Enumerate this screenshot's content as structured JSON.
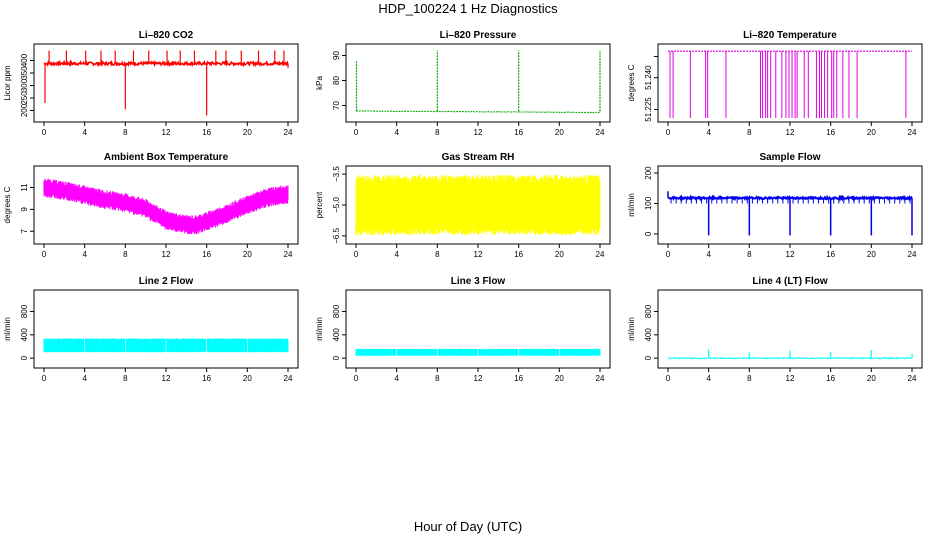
{
  "page": {
    "title": "HDP_100224  1 Hz Diagnostics",
    "xlabel": "Hour of Day (UTC)"
  },
  "chart_data": [
    {
      "type": "line",
      "title": "Li–820 CO2",
      "ylabel": "Licor ppm",
      "color": "#ff0000",
      "xlim": [
        0,
        24
      ],
      "xticks": [
        0,
        4,
        8,
        12,
        16,
        20,
        24
      ],
      "ylim": [
        170,
        450
      ],
      "yticks": [
        200,
        250,
        300,
        350,
        400
      ],
      "baseline": 388,
      "noise": 12,
      "spikes_up": [
        0.5,
        2.2,
        4.1,
        5.6,
        7.0,
        8.8,
        10.3,
        12.1,
        13.4,
        14.8,
        16.9,
        17.9,
        19.4,
        21.1,
        22.7,
        23.6
      ],
      "spike_up_value": 440,
      "spikes_down": [
        {
          "x": 0.1,
          "y": 230
        },
        {
          "x": 8.0,
          "y": 205
        },
        {
          "x": 16.0,
          "y": 180
        },
        {
          "x": 24.0,
          "y": 370
        }
      ]
    },
    {
      "type": "line",
      "title": "Li–820 Pressure",
      "ylabel": "kPa",
      "color": "#00aa00",
      "xlim": [
        0,
        24
      ],
      "xticks": [
        0,
        4,
        8,
        12,
        16,
        20,
        24
      ],
      "ylim": [
        65,
        93
      ],
      "yticks": [
        70,
        80,
        90
      ],
      "baseline_start": 67.8,
      "baseline_end": 67.2,
      "spikes_up": [
        {
          "x": 0.05,
          "y": 88
        },
        {
          "x": 8.0,
          "y": 92
        },
        {
          "x": 16.0,
          "y": 92
        },
        {
          "x": 24.0,
          "y": 92
        }
      ]
    },
    {
      "type": "line",
      "title": "Li–820 Temperature",
      "ylabel": "degrees C",
      "color": "#e000e0",
      "xlim": [
        0,
        24
      ],
      "xticks": [
        0,
        4,
        8,
        12,
        16,
        20,
        24
      ],
      "ylim": [
        51.221,
        51.254
      ],
      "yticks": [
        51.225,
        51.24,
        51.25
      ],
      "ytick_labels": [
        "51.225",
        "51.240",
        ""
      ],
      "baseline": 51.2525,
      "drops_x": [
        0.2,
        0.5,
        2.2,
        3.7,
        3.9,
        5.7,
        9.1,
        9.3,
        9.6,
        9.8,
        10.1,
        10.6,
        11.2,
        11.6,
        11.9,
        12.2,
        12.5,
        12.7,
        13.4,
        13.8,
        14.6,
        14.9,
        15.1,
        15.4,
        15.7,
        16.1,
        16.3,
        16.6,
        17.2,
        17.8,
        18.6,
        23.4
      ],
      "drop_value": 51.221
    },
    {
      "type": "line",
      "title": "Ambient Box Temperature",
      "ylabel": "degrees C",
      "color": "#ff00ff",
      "xlim": [
        0,
        24
      ],
      "xticks": [
        0,
        4,
        8,
        12,
        16,
        20,
        24
      ],
      "ylim": [
        6.2,
        12.6
      ],
      "yticks": [
        7,
        9,
        11
      ],
      "curve_x": [
        0,
        2,
        4,
        6,
        8,
        10,
        12,
        14,
        15,
        16,
        18,
        20,
        22,
        24
      ],
      "curve_y": [
        11.0,
        10.7,
        10.3,
        9.9,
        9.6,
        9.1,
        8.0,
        7.6,
        7.6,
        7.9,
        8.6,
        9.4,
        10.1,
        10.4
      ],
      "band": 0.8
    },
    {
      "type": "line",
      "title": "Gas Stream RH",
      "ylabel": "percent",
      "color": "#ffff00",
      "xlim": [
        0,
        24
      ],
      "xticks": [
        0,
        4,
        8,
        12,
        16,
        20,
        24
      ],
      "ylim": [
        -6.7,
        -3.3
      ],
      "yticks": [
        -3.5,
        -5.0,
        -6.5
      ],
      "ytick_labels": [
        "−3.5",
        "−5.0",
        "−6.5"
      ],
      "band_low": -6.4,
      "band_high": -3.6
    },
    {
      "type": "line",
      "title": "Sample Flow",
      "ylabel": "ml/min",
      "color": "#0000ee",
      "xlim": [
        0,
        24
      ],
      "xticks": [
        0,
        4,
        8,
        12,
        16,
        20,
        24
      ],
      "ylim": [
        -20,
        210
      ],
      "yticks": [
        0,
        100,
        200
      ],
      "baseline": 118,
      "dips": [
        {
          "x": 4.0,
          "y": -5
        },
        {
          "x": 8.0,
          "y": -5
        },
        {
          "x": 12.0,
          "y": -5
        },
        {
          "x": 16.0,
          "y": -5
        },
        {
          "x": 20.0,
          "y": -5
        },
        {
          "x": 24.0,
          "y": -5
        }
      ],
      "small_dips_value": 100
    },
    {
      "type": "area",
      "title": "Line 2 Flow",
      "ylabel": "ml/min",
      "color": "#00ffff",
      "xlim": [
        0,
        24
      ],
      "xticks": [
        0,
        4,
        8,
        12,
        16,
        20,
        24
      ],
      "ylim": [
        -100,
        1100
      ],
      "yticks": [
        0,
        400,
        800
      ],
      "band_low": 100,
      "band_high": 340,
      "gaps": [
        4,
        8,
        12,
        16,
        20
      ]
    },
    {
      "type": "area",
      "title": "Line 3 Flow",
      "ylabel": "ml/min",
      "color": "#00ffff",
      "xlim": [
        0,
        24
      ],
      "xticks": [
        0,
        4,
        8,
        12,
        16,
        20,
        24
      ],
      "ylim": [
        -100,
        1100
      ],
      "yticks": [
        0,
        400,
        800
      ],
      "band_low": 40,
      "band_high": 160,
      "gaps": [
        4,
        8,
        12,
        16,
        20
      ]
    },
    {
      "type": "line",
      "title": "Line 4 (LT) Flow",
      "ylabel": "ml/min",
      "color": "#00ffff",
      "xlim": [
        0,
        24
      ],
      "xticks": [
        0,
        4,
        8,
        12,
        16,
        20,
        24
      ],
      "ylim": [
        -100,
        1100
      ],
      "yticks": [
        0,
        400,
        800
      ],
      "baseline": 0,
      "spikes": [
        {
          "x": 4.0,
          "y": 150
        },
        {
          "x": 8.0,
          "y": 100
        },
        {
          "x": 12.0,
          "y": 130
        },
        {
          "x": 16.0,
          "y": 110
        },
        {
          "x": 20.0,
          "y": 140
        },
        {
          "x": 24.0,
          "y": 80
        }
      ]
    }
  ]
}
